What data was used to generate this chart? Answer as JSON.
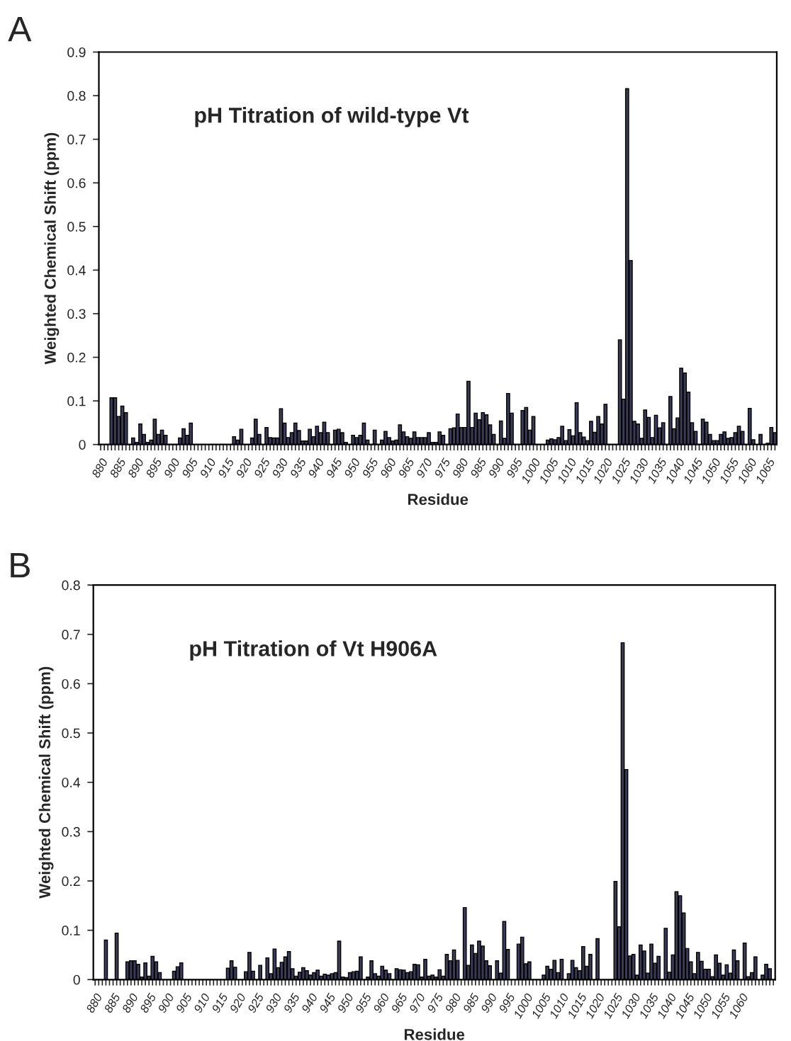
{
  "chart_data": [
    {
      "type": "bar",
      "title": "pH Titration of wild-type Vt",
      "xlabel": "Residue",
      "ylabel": "Weighted Chemical Shift (ppm)",
      "annotations": [
        "A"
      ],
      "grid": false,
      "legend": false,
      "categories": [
        "880",
        null,
        null,
        null,
        null,
        "885",
        null,
        null,
        null,
        null,
        "890",
        null,
        null,
        null,
        null,
        "895",
        null,
        null,
        null,
        null,
        "900",
        null,
        null,
        null,
        null,
        "905",
        null,
        null,
        null,
        null,
        "910",
        null,
        null,
        null,
        null,
        "915",
        null,
        null,
        null,
        null,
        "920",
        null,
        null,
        null,
        null,
        "925",
        null,
        null,
        null,
        null,
        "930",
        null,
        null,
        null,
        null,
        "935",
        null,
        null,
        null,
        null,
        "940",
        null,
        null,
        null,
        null,
        "945",
        null,
        null,
        null,
        null,
        "950",
        null,
        null,
        null,
        null,
        "955",
        null,
        null,
        null,
        null,
        "960",
        null,
        null,
        null,
        null,
        "965",
        null,
        null,
        null,
        null,
        "970",
        null,
        null,
        null,
        null,
        "975",
        null,
        null,
        null,
        null,
        "980",
        null,
        null,
        null,
        null,
        "985",
        null,
        null,
        null,
        null,
        "990",
        null,
        null,
        null,
        null,
        "995",
        null,
        null,
        null,
        null,
        "1000",
        null,
        null,
        null,
        null,
        "1005",
        null,
        null,
        null,
        null,
        "1010",
        null,
        null,
        null,
        null,
        "1015",
        null,
        null,
        null,
        null,
        "1020",
        null,
        null,
        null,
        null,
        "1025",
        null,
        null,
        null,
        null,
        "1030",
        null,
        null,
        null,
        null,
        "1035",
        null,
        null,
        null,
        null,
        "1040",
        null,
        null,
        null,
        null,
        "1045",
        null,
        null,
        null,
        null,
        "1050",
        null,
        null,
        null,
        null,
        "1055",
        null,
        null,
        null,
        null,
        "1060",
        null,
        null,
        null,
        null,
        "1065",
        null,
        null
      ],
      "series": [
        {
          "color": "#3b3b58",
          "values": [
            null,
            null,
            null,
            0.107,
            0.107,
            0.064,
            0.088,
            0.073,
            null,
            0.015,
            0.005,
            0.047,
            0.023,
            0.005,
            0.01,
            0.058,
            0.023,
            0.033,
            0.021,
            null,
            null,
            null,
            0.015,
            0.036,
            0.021,
            0.049,
            null,
            null,
            null,
            null,
            null,
            null,
            null,
            null,
            null,
            null,
            null,
            0.018,
            0.01,
            0.035,
            null,
            null,
            0.015,
            0.058,
            0.023,
            null,
            0.039,
            0.016,
            0.015,
            0.015,
            0.082,
            0.049,
            0.016,
            0.027,
            0.049,
            0.032,
            0.008,
            0.008,
            0.035,
            0.018,
            0.042,
            0.027,
            0.051,
            0.027,
            null,
            0.033,
            0.035,
            0.027,
            0.005,
            null,
            0.021,
            0.016,
            0.021,
            0.049,
            0.01,
            null,
            0.033,
            null,
            0.01,
            0.03,
            0.016,
            0.008,
            0.01,
            0.045,
            0.029,
            0.018,
            0.014,
            0.029,
            0.016,
            0.016,
            0.016,
            0.027,
            0.005,
            0.005,
            0.029,
            0.021,
            null,
            0.036,
            0.038,
            0.07,
            0.039,
            0.039,
            0.145,
            0.039,
            0.072,
            0.057,
            0.073,
            0.068,
            0.045,
            0.023,
            null,
            0.054,
            0.014,
            0.117,
            0.072,
            null,
            null,
            0.078,
            0.085,
            0.033,
            0.064,
            null,
            null,
            null,
            0.01,
            0.013,
            0.011,
            0.016,
            0.042,
            0.009,
            0.034,
            0.02,
            0.096,
            0.027,
            0.017,
            0.009,
            0.053,
            0.028,
            0.064,
            0.047,
            0.092,
            null,
            null,
            null,
            0.24,
            0.104,
            0.816,
            0.422,
            0.053,
            0.047,
            0.014,
            0.079,
            0.062,
            0.016,
            0.067,
            0.038,
            0.05,
            null,
            0.11,
            0.036,
            0.061,
            0.175,
            0.164,
            0.12,
            0.05,
            0.03,
            null,
            0.058,
            0.051,
            0.023,
            0.009,
            0.009,
            0.023,
            0.029,
            0.014,
            0.016,
            0.027,
            0.042,
            0.03,
            null,
            0.083,
            0.011,
            null,
            0.023,
            null,
            0.003,
            0.039,
            0.027
          ]
        }
      ],
      "ylim": [
        0,
        0.9
      ],
      "yticks": [
        0,
        0.1,
        0.2,
        0.3,
        0.4,
        0.5,
        0.6,
        0.7,
        0.8,
        0.9
      ]
    },
    {
      "type": "bar",
      "title": "pH Titration of Vt H906A",
      "xlabel": "Residue",
      "ylabel": "Weighted Chemical Shift (ppm)",
      "annotations": [
        "B"
      ],
      "grid": false,
      "legend": false,
      "categories": [
        "880",
        null,
        null,
        null,
        null,
        "885",
        null,
        null,
        null,
        null,
        "890",
        null,
        null,
        null,
        null,
        "895",
        null,
        null,
        null,
        null,
        "900",
        null,
        null,
        null,
        null,
        "905",
        null,
        null,
        null,
        null,
        "910",
        null,
        null,
        null,
        null,
        "915",
        null,
        null,
        null,
        null,
        "920",
        null,
        null,
        null,
        null,
        "925",
        null,
        null,
        null,
        null,
        "930",
        null,
        null,
        null,
        null,
        "935",
        null,
        null,
        null,
        null,
        "940",
        null,
        null,
        null,
        null,
        "945",
        null,
        null,
        null,
        null,
        "950",
        null,
        null,
        null,
        null,
        "955",
        null,
        null,
        null,
        null,
        "960",
        null,
        null,
        null,
        null,
        "965",
        null,
        null,
        null,
        null,
        "970",
        null,
        null,
        null,
        null,
        "975",
        null,
        null,
        null,
        null,
        "980",
        null,
        null,
        null,
        null,
        "985",
        null,
        null,
        null,
        null,
        "990",
        null,
        null,
        null,
        null,
        "995",
        null,
        null,
        null,
        null,
        "1000",
        null,
        null,
        null,
        null,
        "1005",
        null,
        null,
        null,
        null,
        "1010",
        null,
        null,
        null,
        null,
        "1015",
        null,
        null,
        null,
        null,
        "1020",
        null,
        null,
        null,
        null,
        "1025",
        null,
        null,
        null,
        null,
        "1030",
        null,
        null,
        null,
        null,
        "1035",
        null,
        null,
        null,
        null,
        "1040",
        null,
        null,
        null,
        null,
        "1045",
        null,
        null,
        null,
        null,
        "1050",
        null,
        null,
        null,
        null,
        "1055",
        null,
        null,
        null,
        null,
        "1060",
        null,
        null,
        null,
        null,
        null,
        null,
        null,
        null,
        null
      ],
      "series": [
        {
          "color": "#3b3b58",
          "values": [
            null,
            null,
            null,
            0.08,
            null,
            null,
            0.094,
            null,
            null,
            0.036,
            0.038,
            0.038,
            0.031,
            0.005,
            0.034,
            0.007,
            0.047,
            0.036,
            0.014,
            null,
            null,
            null,
            0.017,
            0.026,
            0.034,
            null,
            null,
            null,
            null,
            null,
            null,
            null,
            null,
            null,
            null,
            null,
            null,
            0.023,
            0.038,
            0.025,
            null,
            null,
            0.016,
            0.055,
            0.017,
            null,
            0.029,
            null,
            0.044,
            0.012,
            0.062,
            0.024,
            0.035,
            0.046,
            0.057,
            0.022,
            0.007,
            0.015,
            0.024,
            0.018,
            0.009,
            0.014,
            0.019,
            0.007,
            0.011,
            0.009,
            0.012,
            0.014,
            0.078,
            0.005,
            0.004,
            0.014,
            0.016,
            0.017,
            0.046,
            null,
            0.005,
            0.038,
            0.012,
            0.007,
            0.027,
            0.019,
            0.012,
            null,
            0.022,
            0.02,
            0.019,
            0.014,
            0.016,
            0.031,
            0.03,
            0.005,
            0.041,
            0.007,
            0.009,
            0.005,
            0.02,
            0.007,
            0.051,
            0.038,
            0.06,
            0.039,
            null,
            0.146,
            0.029,
            0.07,
            0.053,
            0.078,
            0.068,
            0.038,
            0.028,
            null,
            0.038,
            0.013,
            0.118,
            0.061,
            null,
            null,
            0.072,
            0.086,
            0.032,
            0.036,
            null,
            null,
            null,
            0.009,
            0.027,
            0.021,
            0.039,
            0.014,
            0.041,
            null,
            0.012,
            0.039,
            0.024,
            0.018,
            0.067,
            0.027,
            0.051,
            null,
            0.083,
            null,
            null,
            null,
            null,
            0.199,
            0.107,
            0.683,
            0.426,
            0.048,
            0.051,
            0.009,
            0.07,
            0.058,
            0.013,
            0.072,
            0.033,
            0.047,
            null,
            0.104,
            0.015,
            0.05,
            0.178,
            0.17,
            0.135,
            0.063,
            0.036,
            0.012,
            0.055,
            0.037,
            0.021,
            0.021,
            0.006,
            0.05,
            0.033,
            0.009,
            0.03,
            0.013,
            0.06,
            0.038,
            null,
            0.074,
            0.006,
            0.014,
            0.046,
            null,
            0.009,
            0.031,
            0.022,
            null
          ]
        }
      ],
      "ylim": [
        0,
        0.8
      ],
      "yticks": [
        0,
        0.1,
        0.2,
        0.3,
        0.4,
        0.5,
        0.6,
        0.7,
        0.8
      ]
    }
  ]
}
